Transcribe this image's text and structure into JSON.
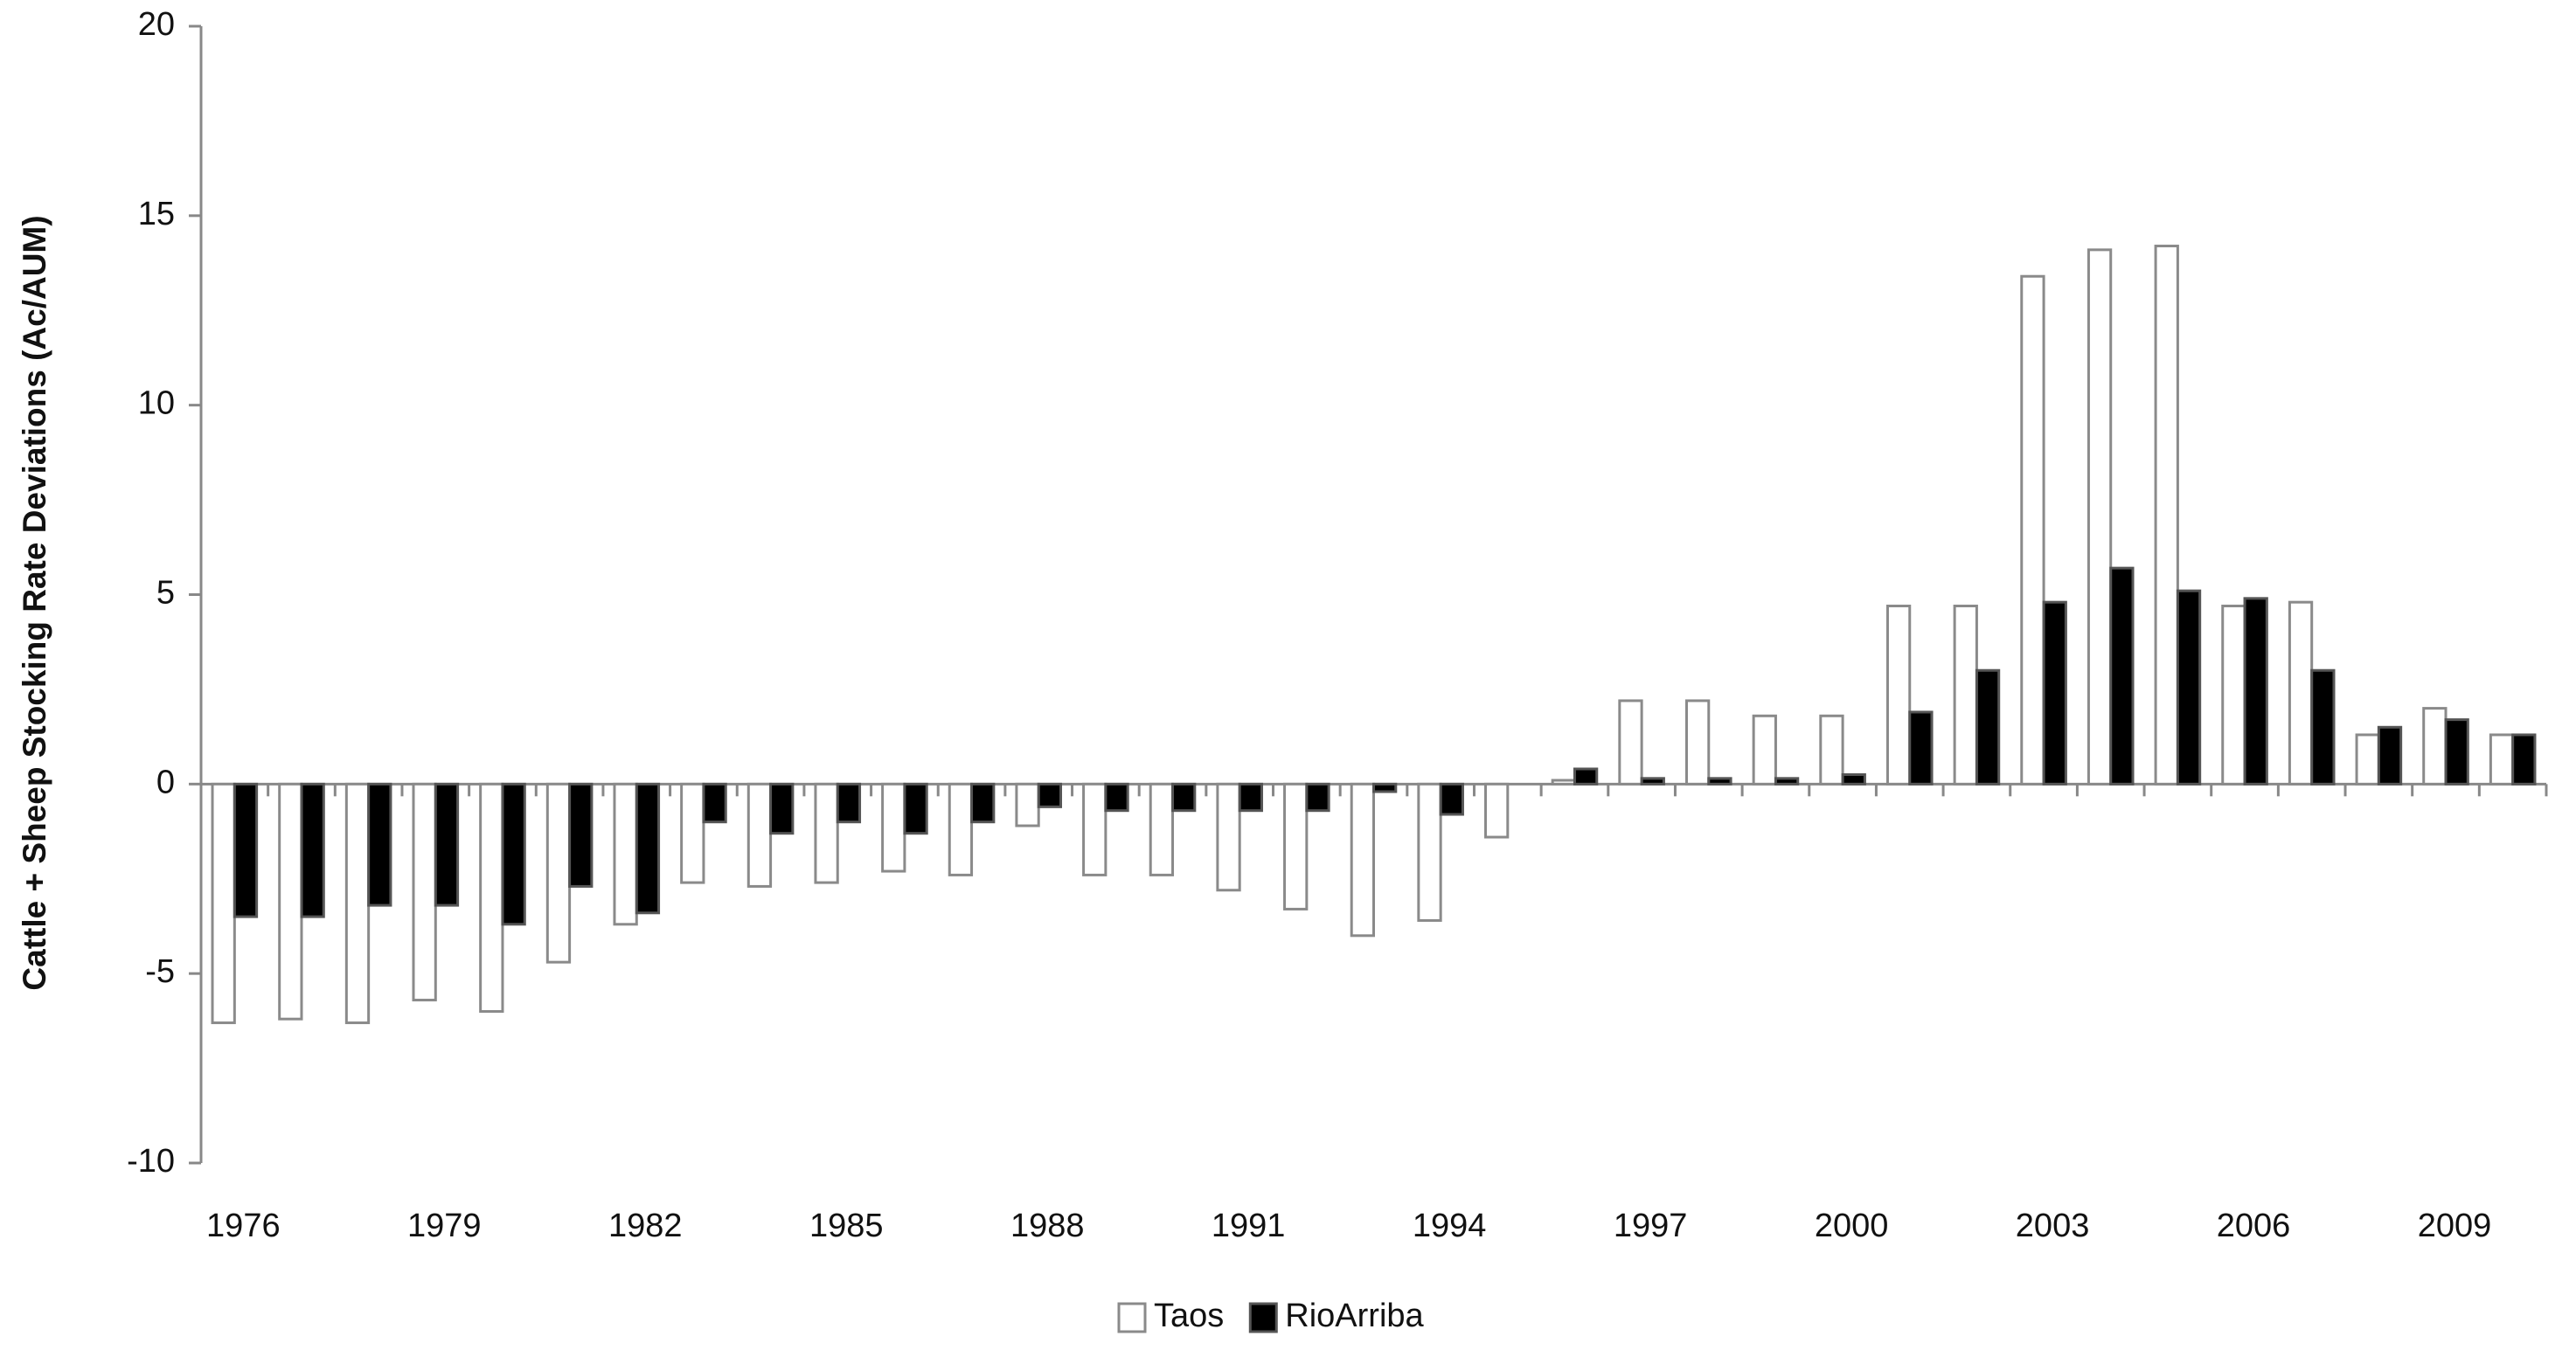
{
  "chart_data": {
    "type": "bar",
    "y_axis_label": "Cattle + Sheep Stocking Rate Deviations  (Ac/AUM)",
    "categories": [
      "1976",
      null,
      null,
      "1979",
      null,
      null,
      "1982",
      null,
      null,
      "1985",
      null,
      null,
      "1988",
      null,
      null,
      "1991",
      null,
      null,
      "1994",
      null,
      null,
      "1997",
      null,
      null,
      "2000",
      null,
      null,
      "2003",
      null,
      null,
      "2006",
      null,
      null,
      "2009",
      null
    ],
    "series": [
      {
        "name": "Taos",
        "color": "#ffffff",
        "edge": "#8a8a8a",
        "values": [
          -6.3,
          -6.2,
          -6.3,
          -5.7,
          -6.0,
          -4.7,
          -3.7,
          -2.6,
          -2.7,
          -2.6,
          -2.3,
          -2.4,
          -1.1,
          -2.4,
          -2.4,
          -2.8,
          -3.3,
          -4.0,
          -3.6,
          -1.4,
          0.1,
          2.2,
          2.2,
          1.8,
          1.8,
          4.7,
          4.7,
          13.4,
          14.1,
          14.2,
          4.7,
          4.8,
          1.3,
          2.0,
          1.3
        ]
      },
      {
        "name": "RioArriba",
        "color": "#000000",
        "edge": "#555555",
        "values": [
          -3.5,
          -3.5,
          -3.2,
          -3.2,
          -3.7,
          -2.7,
          -3.4,
          -1.0,
          -1.3,
          -1.0,
          -1.3,
          -1.0,
          -0.6,
          -0.7,
          -0.7,
          -0.7,
          -0.7,
          -0.2,
          -0.8,
          0,
          0.4,
          0.15,
          0.15,
          0.15,
          0.25,
          1.9,
          3.0,
          4.8,
          5.7,
          5.1,
          4.9,
          3.0,
          1.5,
          1.7,
          1.3
        ]
      }
    ],
    "ylim": [
      -10,
      20
    ],
    "yticks": [
      -10,
      -5,
      0,
      5,
      10,
      15,
      20
    ],
    "grid": false,
    "legend": "bottom"
  }
}
